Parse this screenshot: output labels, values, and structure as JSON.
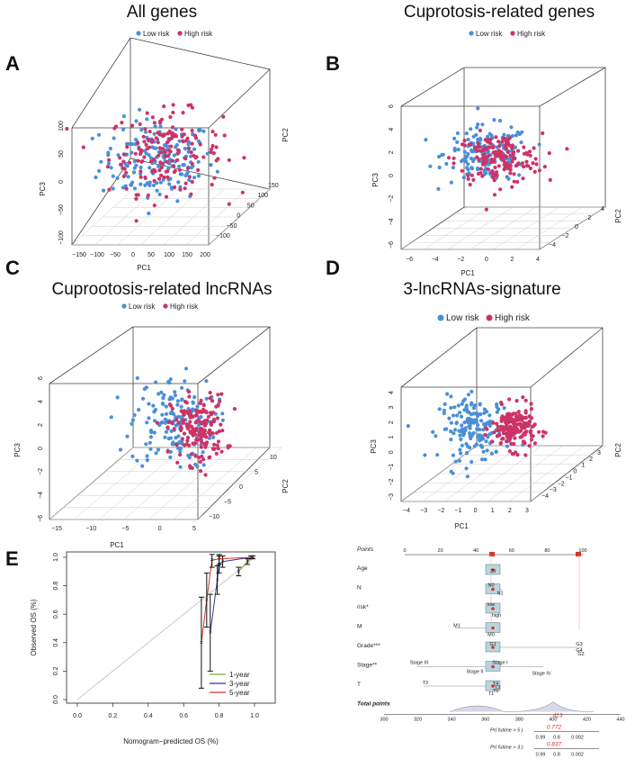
{
  "colors": {
    "low": "#4a8fd8",
    "high": "#cc3366",
    "box": "#444444",
    "grid": "#cccccc"
  },
  "panels": {
    "A": {
      "label": "A",
      "title": "All   genes"
    },
    "B": {
      "label": "B",
      "title": "Cuprotosis-related genes"
    },
    "C": {
      "label": "C",
      "title": "Cuprootosis-related lncRNAs"
    },
    "D": {
      "label": "D",
      "title": "3-lncRNAs-signature"
    },
    "E": {
      "label": "E"
    }
  },
  "legend": {
    "low": "Low risk",
    "high": "High risk"
  },
  "chart_data": [
    {
      "type": "scatter",
      "panel": "A",
      "title": "All   genes",
      "xlabel": "PC1",
      "ylabel": "PC3",
      "zlabel": "PC2",
      "x_ticks": [
        "−150",
        "−100",
        "−50",
        "0",
        "50",
        "100",
        "150",
        "200"
      ],
      "y_ticks": [
        "−100",
        "−50",
        "0",
        "50",
        "100"
      ],
      "z_ticks": [
        "−100",
        "−50",
        "0",
        "50",
        "100",
        "150"
      ],
      "series": [
        {
          "name": "Low risk",
          "n": 170,
          "cx": 0,
          "cy": 0,
          "sx": 35,
          "sy": 25
        },
        {
          "name": "High risk",
          "n": 170,
          "cx": 10,
          "cy": 10,
          "sx": 35,
          "sy": 25
        }
      ]
    },
    {
      "type": "scatter",
      "panel": "B",
      "title": "Cuprotosis-related genes",
      "xlabel": "PC1",
      "ylabel": "PC3",
      "zlabel": "PC2",
      "x_ticks": [
        "−6",
        "−4",
        "−2",
        "0",
        "2",
        "4"
      ],
      "y_ticks": [
        "−6",
        "−4",
        "−2",
        "0",
        "2",
        "4",
        "6"
      ],
      "z_ticks": [
        "−4",
        "−2",
        "0",
        "2",
        "4"
      ],
      "series": [
        {
          "name": "Low risk",
          "n": 160,
          "cx": -0.2,
          "cy": 0.8,
          "sx": 1.5,
          "sy": 1.1
        },
        {
          "name": "High risk",
          "n": 160,
          "cx": 0.6,
          "cy": 0.4,
          "sx": 1.5,
          "sy": 1.0
        }
      ]
    },
    {
      "type": "scatter",
      "panel": "C",
      "title": "Cuprootosis-related lncRNAs",
      "xlabel": "PC1",
      "ylabel": "PC3",
      "zlabel": "PC2",
      "x_ticks": [
        "−15",
        "−10",
        "−5",
        "0",
        "5"
      ],
      "y_ticks": [
        "−6",
        "−4",
        "−2",
        "0",
        "2",
        "4",
        "6"
      ],
      "z_ticks": [
        "−10",
        "−5",
        "0",
        "5",
        "10"
      ],
      "series": [
        {
          "name": "Low risk",
          "n": 160,
          "cx": -2,
          "cy": 0.8,
          "sx": 2.6,
          "sy": 1.6
        },
        {
          "name": "High risk",
          "n": 170,
          "cx": 1.2,
          "cy": 0.3,
          "sx": 1.7,
          "sy": 1.2
        }
      ]
    },
    {
      "type": "scatter",
      "panel": "D",
      "title": "3-lncRNAs-signature",
      "xlabel": "PC1",
      "ylabel": "PC3",
      "zlabel": "PC2",
      "x_ticks": [
        "−4",
        "−3",
        "−2",
        "−1",
        "0",
        "1",
        "2",
        "3"
      ],
      "y_ticks": [
        "−3",
        "−2",
        "−1",
        "0",
        "1",
        "2",
        "3",
        "4"
      ],
      "z_ticks": [
        "−4",
        "−3",
        "−2",
        "−1",
        "0",
        "1",
        "2",
        "3"
      ],
      "series": [
        {
          "name": "Low risk",
          "n": 170,
          "cx": -0.8,
          "cy": 0.6,
          "sx": 1.0,
          "sy": 1.0
        },
        {
          "name": "High risk",
          "n": 180,
          "cx": 1.3,
          "cy": 0.6,
          "sx": 0.6,
          "sy": 0.7
        }
      ]
    },
    {
      "type": "line",
      "panel": "E",
      "xlabel": "Nomogram−predicted OS (%)",
      "ylabel": "Observed OS (%)",
      "xlim": [
        0,
        1
      ],
      "ylim": [
        0,
        1
      ],
      "x_ticks": [
        "0.0",
        "0.2",
        "0.4",
        "0.6",
        "0.8",
        "1.0"
      ],
      "y_ticks": [
        "0.0",
        "0.2",
        "0.4",
        "0.6",
        "0.8",
        "1.0"
      ],
      "series": [
        {
          "name": "1-year",
          "color": "#7ab030",
          "x": [
            0.91,
            0.96,
            0.99
          ],
          "y": [
            0.9,
            0.97,
            1.0
          ],
          "err": [
            0.03,
            0.02,
            0.01
          ]
        },
        {
          "name": "3-year",
          "color": "#2a3a8c",
          "x": [
            0.75,
            0.79,
            0.8,
            0.82,
            0.98
          ],
          "y": [
            0.47,
            0.84,
            0.95,
            0.97,
            1.0
          ],
          "err": [
            0.27,
            0.1,
            0.06,
            0.04,
            0.01
          ]
        },
        {
          "name": "5-year",
          "color": "#d8332a",
          "x": [
            0.7,
            0.73,
            0.76,
            0.8,
            0.99
          ],
          "y": [
            0.4,
            0.7,
            0.98,
            0.99,
            1.0
          ],
          "err": [
            0.32,
            0.19,
            0.05,
            0.04,
            0.01
          ]
        }
      ]
    },
    {
      "type": "nomogram",
      "panel": "E-right",
      "points_label": "Points",
      "points_ticks": [
        "0",
        "20",
        "40",
        "60",
        "80",
        "100"
      ],
      "variables": [
        {
          "name": "Age",
          "levels": [
            "20"
          ]
        },
        {
          "name": "N",
          "levels": [
            "N0",
            "N1"
          ]
        },
        {
          "name": "risk*",
          "levels": [
            "low",
            "high"
          ]
        },
        {
          "name": "M",
          "levels": [
            "M1",
            "M0"
          ]
        },
        {
          "name": "Grade***",
          "levels": [
            "G1",
            "G3",
            "G4",
            "G2"
          ]
        },
        {
          "name": "Stage**",
          "levels": [
            "Stage III",
            "Stage II",
            "Stage I",
            "Stage IV"
          ]
        },
        {
          "name": "T",
          "levels": [
            "T2",
            "T4",
            "T3",
            "T0",
            "T1"
          ]
        }
      ],
      "total_points_label": "Total points",
      "total_ticks": [
        "300",
        "320",
        "340",
        "360",
        "380",
        "400",
        "420",
        "440"
      ],
      "total_value": "413",
      "predictions": [
        {
          "label": "Pr( futime > 5 )",
          "value": "0.772",
          "ticks": [
            "0.99",
            "0.8",
            "0.002"
          ]
        },
        {
          "label": "Pr( futime > 3 )",
          "value": "0.837",
          "ticks": [
            "0.99",
            "0.8",
            "0.002"
          ]
        },
        {
          "label": "Pr( futime > 1 )",
          "value": "0.929",
          "ticks": [
            "0.99",
            "0.8",
            "0.01"
          ]
        }
      ]
    }
  ]
}
